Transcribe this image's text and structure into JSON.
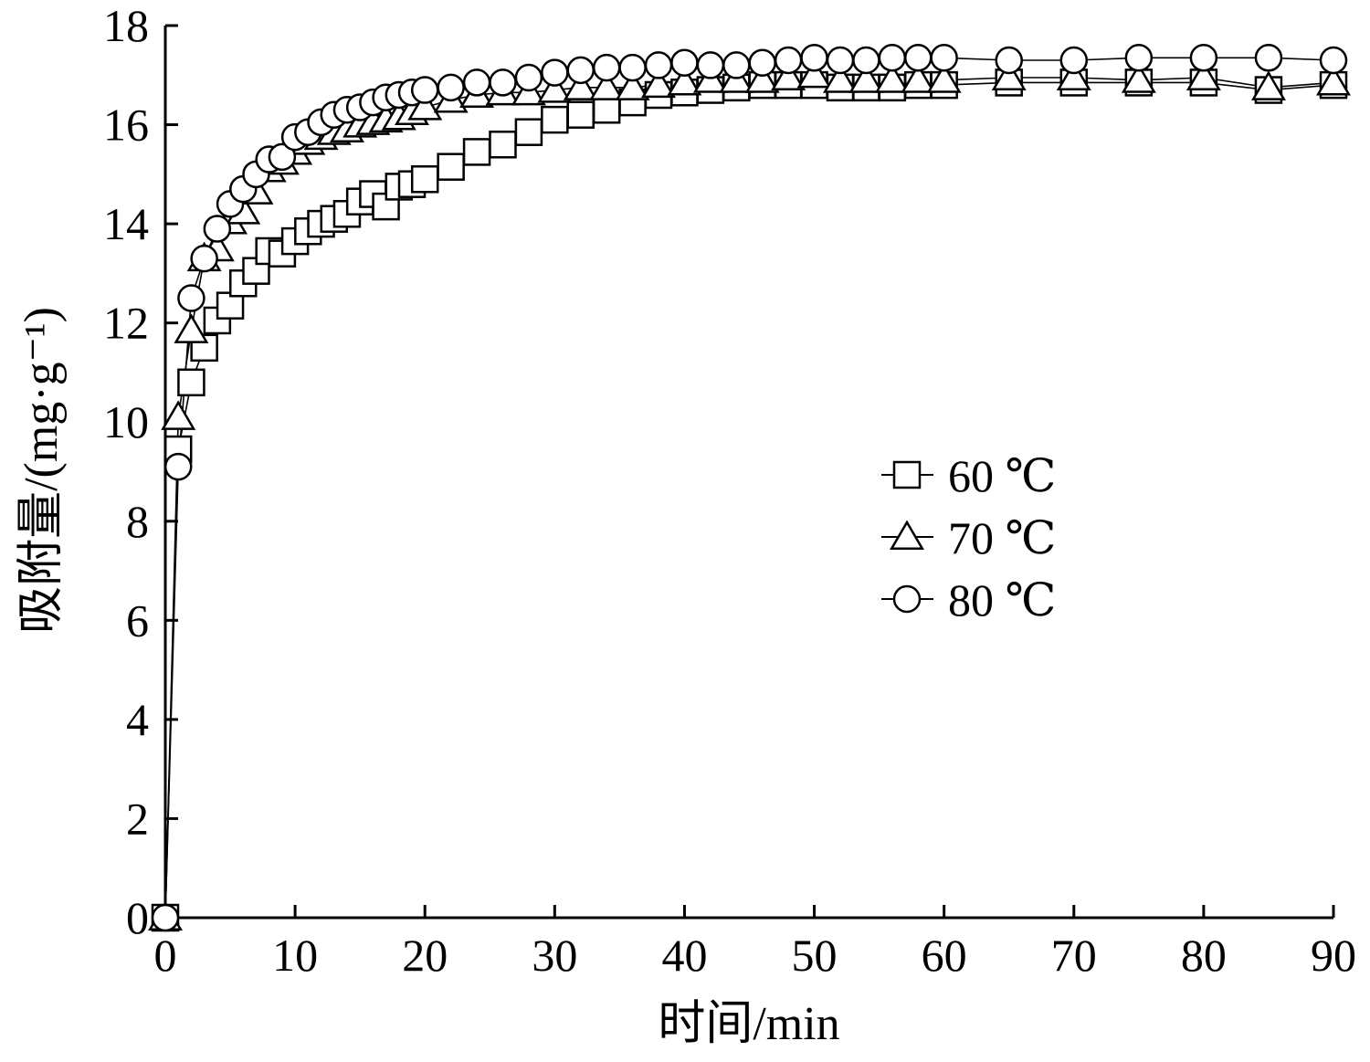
{
  "chart_data": {
    "type": "line",
    "xlabel": "时间/min",
    "ylabel": "吸附量/(mg·g⁻¹)",
    "xlim": [
      0,
      90
    ],
    "ylim": [
      0,
      18
    ],
    "xticks": [
      0,
      10,
      20,
      30,
      40,
      50,
      60,
      70,
      80,
      90
    ],
    "yticks": [
      0,
      2,
      4,
      6,
      8,
      10,
      12,
      14,
      16,
      18
    ],
    "grid": false,
    "legend_position": "right-center",
    "series": [
      {
        "name": "60 ℃",
        "marker": "square",
        "x": [
          0,
          1,
          2,
          3,
          4,
          5,
          6,
          7,
          8,
          9,
          10,
          11,
          12,
          13,
          14,
          15,
          16,
          17,
          18,
          19,
          20,
          22,
          24,
          26,
          28,
          30,
          32,
          34,
          36,
          38,
          40,
          42,
          44,
          46,
          48,
          50,
          52,
          54,
          56,
          58,
          60,
          65,
          70,
          75,
          80,
          85,
          90
        ],
        "y": [
          0,
          9.45,
          10.8,
          11.5,
          12.05,
          12.35,
          12.8,
          13.05,
          13.45,
          13.4,
          13.65,
          13.85,
          14.0,
          14.1,
          14.2,
          14.45,
          14.6,
          14.35,
          14.75,
          14.8,
          14.9,
          15.15,
          15.45,
          15.6,
          15.85,
          16.1,
          16.2,
          16.3,
          16.45,
          16.6,
          16.65,
          16.7,
          16.75,
          16.8,
          16.8,
          16.8,
          16.75,
          16.75,
          16.75,
          16.8,
          16.8,
          16.85,
          16.85,
          16.85,
          16.85,
          16.7,
          16.8
        ]
      },
      {
        "name": "70 ℃",
        "marker": "triangle",
        "x": [
          0,
          1,
          2,
          3,
          4,
          5,
          6,
          7,
          8,
          9,
          10,
          11,
          12,
          13,
          14,
          15,
          16,
          17,
          18,
          19,
          20,
          22,
          24,
          26,
          28,
          30,
          32,
          34,
          36,
          38,
          40,
          42,
          44,
          46,
          48,
          50,
          52,
          54,
          56,
          58,
          60,
          65,
          70,
          75,
          80,
          85,
          90
        ],
        "y": [
          0,
          10.1,
          11.85,
          13.3,
          13.5,
          14.05,
          14.25,
          14.65,
          15.1,
          15.25,
          15.45,
          15.65,
          15.75,
          15.85,
          15.9,
          16.0,
          16.05,
          16.1,
          16.15,
          16.25,
          16.35,
          16.5,
          16.6,
          16.65,
          16.65,
          16.7,
          16.75,
          16.75,
          16.75,
          16.8,
          16.85,
          16.9,
          16.9,
          16.9,
          16.95,
          17.0,
          16.9,
          16.9,
          16.9,
          16.9,
          16.9,
          16.95,
          16.95,
          16.9,
          16.95,
          16.75,
          16.85
        ]
      },
      {
        "name": "80 ℃",
        "marker": "circle",
        "x": [
          0,
          1,
          2,
          3,
          4,
          5,
          6,
          7,
          8,
          9,
          10,
          11,
          12,
          13,
          14,
          15,
          16,
          17,
          18,
          19,
          20,
          22,
          24,
          26,
          28,
          30,
          32,
          34,
          36,
          38,
          40,
          42,
          44,
          46,
          48,
          50,
          52,
          54,
          56,
          58,
          60,
          65,
          70,
          75,
          80,
          85,
          90
        ],
        "y": [
          0,
          9.1,
          12.5,
          13.3,
          13.9,
          14.4,
          14.7,
          15.0,
          15.3,
          15.35,
          15.75,
          15.85,
          16.05,
          16.2,
          16.3,
          16.35,
          16.45,
          16.55,
          16.6,
          16.65,
          16.7,
          16.75,
          16.85,
          16.85,
          16.95,
          17.05,
          17.1,
          17.15,
          17.15,
          17.2,
          17.25,
          17.2,
          17.2,
          17.25,
          17.3,
          17.35,
          17.3,
          17.3,
          17.35,
          17.35,
          17.35,
          17.3,
          17.3,
          17.35,
          17.35,
          17.35,
          17.3
        ]
      }
    ]
  }
}
